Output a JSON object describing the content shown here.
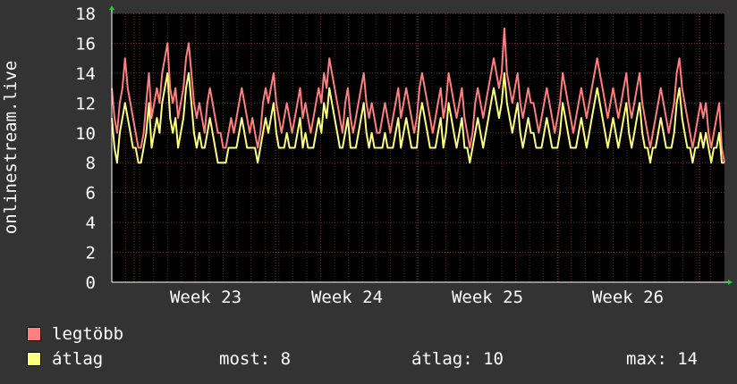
{
  "chart_data": {
    "type": "line",
    "ylabel": "onlinestream.live",
    "ylim": [
      0,
      18
    ],
    "yticks": [
      "0",
      "2",
      "4",
      "6",
      "8",
      "10",
      "12",
      "14",
      "16",
      "18"
    ],
    "x_tick_labels": [
      "Week 23",
      "Week 24",
      "Week 25",
      "Week 26"
    ],
    "grid": true,
    "series": [
      {
        "name": "legtöbb",
        "color": "#ff7f7f",
        "values": [
          13,
          11,
          10,
          12,
          13,
          15,
          13,
          12,
          11,
          10,
          9,
          9,
          10,
          12,
          14,
          11,
          12,
          13,
          12,
          14,
          15,
          16,
          13,
          12,
          13,
          11,
          12,
          13,
          15,
          16,
          14,
          12,
          11,
          12,
          11,
          10,
          12,
          13,
          12,
          11,
          10,
          10,
          9,
          9,
          10,
          11,
          10,
          11,
          12,
          13,
          12,
          11,
          10,
          11,
          10,
          9,
          10,
          12,
          13,
          12,
          13,
          14,
          12,
          11,
          10,
          11,
          12,
          11,
          10,
          11,
          12,
          13,
          11,
          12,
          11,
          10,
          11,
          12,
          13,
          12,
          14,
          13,
          15,
          14,
          13,
          12,
          11,
          10,
          12,
          13,
          11,
          10,
          11,
          12,
          13,
          14,
          12,
          11,
          12,
          11,
          10,
          10,
          11,
          12,
          11,
          10,
          11,
          12,
          13,
          11,
          12,
          13,
          12,
          11,
          10,
          11,
          13,
          14,
          13,
          12,
          11,
          10,
          11,
          12,
          13,
          11,
          12,
          14,
          13,
          12,
          11,
          12,
          13,
          11,
          10,
          9,
          10,
          12,
          13,
          12,
          11,
          12,
          13,
          14,
          15,
          14,
          13,
          14,
          17,
          14,
          13,
          12,
          13,
          14,
          12,
          11,
          12,
          13,
          12,
          12,
          11,
          10,
          11,
          12,
          13,
          12,
          11,
          10,
          11,
          12,
          14,
          13,
          12,
          11,
          10,
          11,
          12,
          13,
          12,
          11,
          12,
          13,
          14,
          15,
          14,
          13,
          12,
          11,
          12,
          13,
          12,
          11,
          12,
          13,
          14,
          12,
          11,
          12,
          13,
          14,
          12,
          11,
          10,
          9,
          10,
          11,
          12,
          13,
          12,
          11,
          10,
          11,
          12,
          14,
          15,
          13,
          12,
          11,
          10,
          9,
          10,
          11,
          12,
          11,
          12,
          10,
          9,
          10,
          11,
          12,
          9,
          8
        ]
      },
      {
        "name": "átlag",
        "color": "#ffff7f",
        "values": [
          11,
          9,
          8,
          10,
          11,
          12,
          11,
          10,
          9,
          9,
          8,
          8,
          9,
          10,
          12,
          9,
          10,
          11,
          10,
          12,
          13,
          14,
          11,
          10,
          11,
          9,
          10,
          11,
          13,
          14,
          12,
          10,
          9,
          10,
          9,
          9,
          10,
          11,
          10,
          9,
          8,
          8,
          8,
          8,
          9,
          9,
          9,
          9,
          10,
          11,
          10,
          9,
          9,
          9,
          9,
          8,
          9,
          10,
          11,
          10,
          11,
          12,
          10,
          9,
          9,
          9,
          10,
          9,
          9,
          9,
          10,
          11,
          9,
          10,
          9,
          9,
          9,
          10,
          11,
          10,
          12,
          11,
          13,
          12,
          11,
          10,
          9,
          9,
          10,
          11,
          9,
          9,
          9,
          10,
          11,
          12,
          10,
          9,
          10,
          9,
          9,
          9,
          9,
          10,
          9,
          9,
          9,
          10,
          11,
          9,
          10,
          11,
          10,
          9,
          9,
          9,
          11,
          12,
          11,
          10,
          9,
          9,
          9,
          10,
          11,
          9,
          10,
          12,
          11,
          10,
          9,
          10,
          11,
          9,
          9,
          8,
          9,
          10,
          11,
          10,
          9,
          10,
          11,
          12,
          13,
          12,
          11,
          12,
          14,
          12,
          11,
          10,
          11,
          12,
          10,
          9,
          10,
          11,
          10,
          10,
          9,
          9,
          9,
          10,
          11,
          10,
          9,
          9,
          9,
          10,
          12,
          11,
          10,
          9,
          9,
          9,
          10,
          11,
          10,
          9,
          10,
          11,
          12,
          13,
          12,
          11,
          10,
          9,
          10,
          11,
          10,
          9,
          10,
          11,
          12,
          10,
          9,
          10,
          11,
          12,
          10,
          9,
          9,
          8,
          9,
          9,
          10,
          11,
          10,
          9,
          9,
          9,
          10,
          12,
          13,
          11,
          10,
          9,
          9,
          8,
          9,
          9,
          10,
          9,
          10,
          9,
          8,
          9,
          9,
          10,
          8,
          8
        ]
      }
    ]
  },
  "legend": {
    "items": [
      {
        "label": "legtöbb",
        "color": "#ff7f7f"
      },
      {
        "label": "átlag",
        "color": "#ffff7f"
      }
    ],
    "now_label": "most: 8",
    "avg_label": "átlag: 10",
    "max_label": "max: 14"
  }
}
